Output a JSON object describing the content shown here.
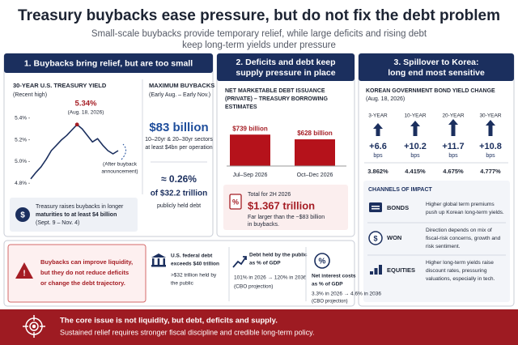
{
  "title": "Treasury buybacks ease pressure, but do not fix the debt problem",
  "subtitle": [
    "Small-scale buybacks provide temporary relief, while large deficits and rising debt",
    "keep long-term yields under pressure"
  ],
  "panel1": {
    "header": "1. Buybacks bring relief, but are too small",
    "chart": {
      "type": "line",
      "title": "30-YEAR U.S. TREASURY YIELD",
      "subtitle": "(Recent high)",
      "values": [
        4.84,
        4.9,
        4.95,
        5.02,
        5.1,
        5.15,
        5.2,
        5.24,
        5.29,
        5.34,
        5.3,
        5.24,
        5.18,
        5.21,
        5.15,
        5.1,
        5.07,
        5.1
      ],
      "color": "#1b2f5e",
      "ylim": [
        4.75,
        5.45
      ],
      "yticks": [
        {
          "value": 5.4,
          "label": "5.4%"
        },
        {
          "value": 5.2,
          "label": "5.2%"
        },
        {
          "value": 5.0,
          "label": "5.0%"
        },
        {
          "value": 4.8,
          "label": "4.8%"
        }
      ],
      "peak_label": "5.34%",
      "peak_date": "(Aug. 18, 2026)",
      "annotation": [
        "(After buyback",
        "announcement)"
      ]
    },
    "max_buybacks": {
      "title": "MAXIMUM BUYBACKS",
      "period": "(Early Aug. – Early Nov.)",
      "amount": "$83 billion",
      "details": [
        "10–20yr & 20–30yr sectors",
        "at least $4bn per operation"
      ],
      "share": "≈ 0.26%",
      "share_of": "of $32.2 trillion",
      "share_note": "publicly held debt"
    },
    "note": [
      "Treasury raises buybacks in longer",
      "maturities to at least $4 billion",
      "(Sept. 9 – Nov. 4)"
    ]
  },
  "panel2": {
    "header": [
      "2. Deficits and debt keep",
      "supply pressure in place"
    ],
    "chart": {
      "type": "bar",
      "title": [
        "NET MARKETABLE DEBT ISSUANCE",
        "(PRIVATE) – TREASURY BORROWING",
        "ESTIMATES"
      ],
      "categories": [
        "Jul–Sep 2026",
        "Oct–Dec 2026"
      ],
      "values": [
        739,
        628
      ],
      "value_labels": [
        "$739 billion",
        "$628 billion"
      ],
      "color": "#b5121b",
      "ylim": [
        0,
        800
      ]
    },
    "total": {
      "label": "Total for 2H 2026",
      "amount": "$1.367 trillion",
      "note": [
        "Far larger than the ~$83 billion",
        "in buybacks."
      ]
    }
  },
  "panel3": {
    "header": [
      "3. Spillover to Korea:",
      "long end most sensitive"
    ],
    "title": "KOREAN GOVERNMENT BOND YIELD CHANGE",
    "date": "(Aug. 18, 2026)",
    "terms": [
      {
        "term": "3-YEAR",
        "change": "+6.6",
        "unit": "bps",
        "yield": "3.862%"
      },
      {
        "term": "10-YEAR",
        "change": "+10.2",
        "unit": "bps",
        "yield": "4.415%"
      },
      {
        "term": "20-YEAR",
        "change": "+11.7",
        "unit": "bps",
        "yield": "4.675%"
      },
      {
        "term": "30-YEAR",
        "change": "+10.8",
        "unit": "bps",
        "yield": "4.777%"
      }
    ],
    "channels": {
      "title": "CHANNELS OF IMPACT",
      "items": [
        {
          "name": "BONDS",
          "text": [
            "Higher global term premiums",
            "push up Korean long-term yields."
          ]
        },
        {
          "name": "WON",
          "text": [
            "Direction depends on mix of",
            "fiscal-risk concerns, growth and",
            "risk sentiment."
          ]
        },
        {
          "name": "EQUITIES",
          "text": [
            "Higher long-term yields raise",
            "discount rates, pressuring",
            "valuations, especially in tech."
          ]
        }
      ]
    }
  },
  "facts": {
    "warning": [
      "Buybacks can improve liquidity,",
      "but they do not reduce deficits",
      "or change the debt trajectory."
    ],
    "items": [
      {
        "title": [
          "U.S. federal debt",
          "exceeds $40 trillion"
        ],
        "detail": [
          ">$32 trillion held by",
          "the public"
        ]
      },
      {
        "title": [
          "Debt held by the public",
          "as % of GDP"
        ],
        "detail": [
          "101% in 2026 → 120% in 2036",
          "(CBO projection)"
        ]
      },
      {
        "title": [
          "Net interest costs",
          "as % of GDP"
        ],
        "detail": [
          "3.3% in 2026 → 4.6% in 2036",
          "(CBO projection)"
        ]
      }
    ]
  },
  "footer": [
    "The core issue is not liquidity, but debt, deficits and supply.",
    "Sustained relief requires stronger fiscal discipline and credible long-term policy."
  ]
}
